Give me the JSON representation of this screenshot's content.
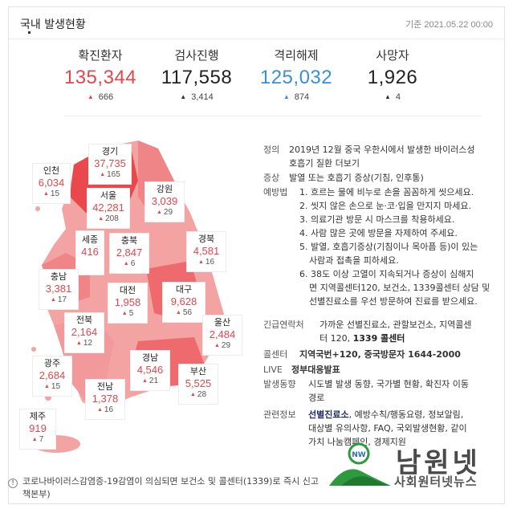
{
  "header": {
    "title": "국내 발생현황",
    "date": "기준 2021.05.22 00:00"
  },
  "stats": [
    {
      "label": "확진환자",
      "value": "135,344",
      "delta": "666",
      "color": "#e0484d",
      "arrow_color": "#e0484d"
    },
    {
      "label": "검사진행",
      "value": "117,558",
      "delta": "3,414",
      "color": "#222222",
      "arrow_color": "#333333"
    },
    {
      "label": "격리해제",
      "value": "125,032",
      "delta": "874",
      "color": "#3a8fd8",
      "arrow_color": "#3a8fd8"
    },
    {
      "label": "사망자",
      "value": "1,926",
      "delta": "4",
      "color": "#222222",
      "arrow_color": "#333333"
    }
  ],
  "regions": [
    {
      "name": "인천",
      "value": "6,034",
      "inc": "15"
    },
    {
      "name": "경기",
      "value": "37,735",
      "inc": "165"
    },
    {
      "name": "서울",
      "value": "42,281",
      "inc": "208"
    },
    {
      "name": "강원",
      "value": "3,039",
      "inc": "29"
    },
    {
      "name": "세종",
      "value": "416",
      "inc": "",
      "vertical": true
    },
    {
      "name": "충북",
      "value": "2,847",
      "inc": "6"
    },
    {
      "name": "경북",
      "value": "4,581",
      "inc": "16"
    },
    {
      "name": "충남",
      "value": "3,381",
      "inc": "17"
    },
    {
      "name": "대전",
      "value": "1,958",
      "inc": "5"
    },
    {
      "name": "대구",
      "value": "9,628",
      "inc": "56"
    },
    {
      "name": "전북",
      "value": "2,164",
      "inc": "12"
    },
    {
      "name": "울산",
      "value": "2,484",
      "inc": "29"
    },
    {
      "name": "광주",
      "value": "2,684",
      "inc": "15"
    },
    {
      "name": "경남",
      "value": "4,546",
      "inc": "21"
    },
    {
      "name": "전남",
      "value": "1,378",
      "inc": "16"
    },
    {
      "name": "부산",
      "value": "5,525",
      "inc": "28"
    },
    {
      "name": "제주",
      "value": "919",
      "inc": "7"
    }
  ],
  "info": {
    "definition_label": "정의",
    "definition_1": "2019년 12월 중국 우한시에서 발생한 바이러스성",
    "definition_2": "호흡기 질환 더보기",
    "symptom_label": "증상",
    "symptom": "발열 또는 호흡기 증상(기침, 인후통)",
    "prevention_label": "예방법",
    "prevention": [
      "1. 흐르는 물에 비누로 손을 꼼꼼하게 씻으세요.",
      "2. 씻지 않은 손으로 눈·코·입을 만지지 마세요.",
      "3. 의료기관 방문 시 마스크를 착용하세요.",
      "4. 사람 많은 곳에 방문을 자제하여 주세요.",
      "5. 발열, 호흡기증상(기침이나 목아픔 등)이 있는",
      "사람과 접촉을 피하세요.",
      "6. 38도 이상 고열이 지속되거나 증상이 심해지",
      "면 지역콜센터120, 보건소, 1339콜센터 상담 및",
      "선별진료소를 우선 방문하여 진료를 받으세요."
    ],
    "emergency_label": "긴급연락처",
    "emergency_1": "가까운 선별진료소, 관할보건소, 지역콜센",
    "emergency_2a": "터 120, ",
    "emergency_2b": "1339 콜센터",
    "callcenter_label": "콜센터",
    "callcenter": "지역국번+120, 중국방문자 1644-2000",
    "live_label": "LIVE",
    "live": "정부대응발표",
    "trend_label": "발생동향",
    "trend_1": "시도별 발생 동향, 국가별 현황, 확진자 이동",
    "trend_2": "경로",
    "related_label": "관련정보",
    "related_bold": "선별진료소",
    "related_1": ", 예방수칙/행동요령, 정보알림,",
    "related_2": "대상별 유의사항, FAQ, 국외발생현황, 같이",
    "related_3": "가치 나눔캠페인, 경제지원"
  },
  "footer": {
    "line1": "코로나바이러스감염증-19감염이 의심되면 보건소 및 콜센터(1339)로 즉시 신고",
    "line2": "책본부)"
  },
  "watermark": {
    "title": "남원넷",
    "subtitle": "사회원터넷뉴스"
  },
  "colors": {
    "accent_red": "#e0484d",
    "accent_blue": "#3a8fd8",
    "map_dark": "#e9484c",
    "map_light": "#f4a3a3"
  }
}
